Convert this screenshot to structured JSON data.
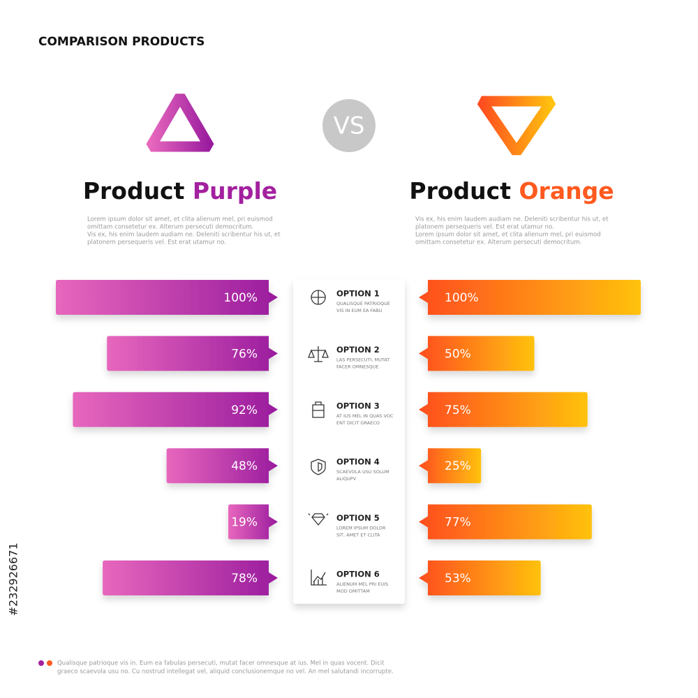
{
  "header": {
    "title": "COMPARISON PRODUCTS",
    "vs": "VS"
  },
  "products": [
    {
      "name": "Product",
      "accent": "Purple",
      "text": [
        "Lorem ipsum dolor sit  amet, et clita alienum mel, pri euismod",
        "omittam  consetetur ex. Alterum persecuti democritum.",
        "Vis ex, his enim laudem audiam ne. Deleniti scribentur his ut, et",
        "platonem persequeris vel. Est erat utamur no."
      ],
      "values": [
        100,
        76,
        92,
        48,
        19,
        78
      ],
      "value_labels": [
        "100%",
        "76%",
        "92%",
        "48%",
        "19%",
        "78%"
      ]
    },
    {
      "name": "Product",
      "accent": "Orange",
      "text": [
        "Vis ex, his enim laudem audiam ne. Deleniti scribentur his ut, et",
        "platonem persequeris vel. Est erat utamur no.",
        "Lorem ipsum dolor sit  amet, et clita alienum mel, pri euismod",
        "omittam  consetetur ex. Alterum persecuti democritum."
      ],
      "values": [
        100,
        50,
        75,
        25,
        77,
        53
      ],
      "value_labels": [
        "100%",
        "50%",
        "75%",
        "25%",
        "77%",
        "53%"
      ]
    }
  ],
  "options": [
    {
      "title": "OPTION 1",
      "text": [
        "QUALISQUE PATRIOQUE",
        "VIS IN EUM EA FABU"
      ]
    },
    {
      "title": "OPTION 2",
      "text": [
        "LAS PERSECUTI, MUTAT",
        "FACER OMNESQUE"
      ]
    },
    {
      "title": "OPTION 3",
      "text": [
        "AT IUS MEL IN QUAS VOC",
        "ENT DICIT GRAECO"
      ]
    },
    {
      "title": "OPTION 4",
      "text": [
        "SCAEVOLA USU SOLUM",
        "ALIQUPV"
      ]
    },
    {
      "title": "OPTION 5",
      "text": [
        "LOREM IPSUM DOLOR",
        "SIT, AMET ET CLITA"
      ]
    },
    {
      "title": "OPTION 6",
      "text": [
        "ALIENUM MEL PRI EUIS",
        "MOD OMITTAM"
      ]
    }
  ],
  "footer": {
    "text": [
      "Qualisque patrioque vis in. Eum ea fabulas persecuti, mutat facer omnesque at ius. Mel in quas vocent. Dicit",
      "graeco scaevola usu no. Cu nostrud intellegat vel, aliquid conclusionemque no vel. An mel salutandi incorrupte."
    ]
  },
  "watermark": "#232926671"
}
